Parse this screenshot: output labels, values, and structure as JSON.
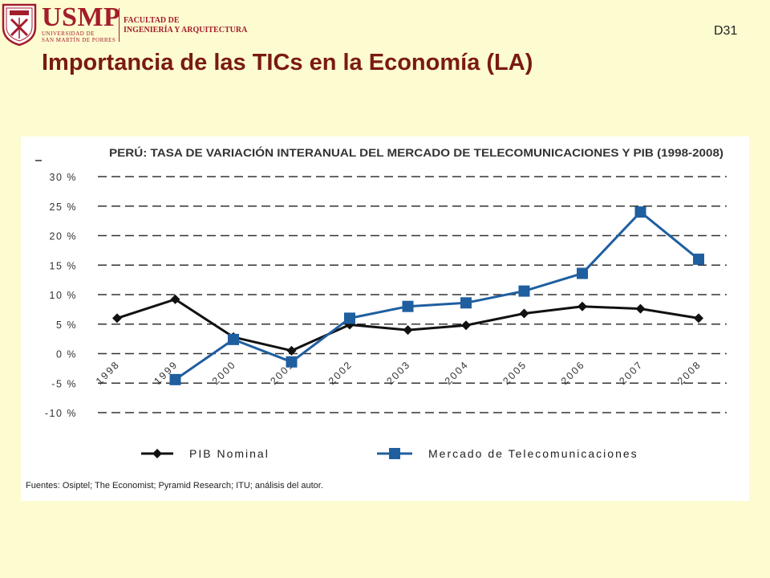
{
  "header": {
    "logo": {
      "seal_text": "VERITAS LIBERABIT VOS",
      "name": "USMP",
      "university_lines": [
        "UNIVERSIDAD DE",
        "SAN MARTÍN DE PORRES"
      ],
      "faculty_lines": [
        "FACULTAD DE",
        "INGENIERÍA Y ARQUITECTURA"
      ]
    },
    "slide_code": "D31"
  },
  "slide_title": "Importancia de las TICs en la Economía (LA)",
  "chart_data": {
    "type": "line",
    "title": "PERÚ: TASA DE VARIACIÓN INTERANUAL DEL MERCADO DE TELECOMUNICACIONES Y PIB (1998-2008)",
    "xlabel": "",
    "ylabel": "",
    "categories": [
      "1998",
      "1999",
      "2000",
      "2001",
      "2002",
      "2003",
      "2004",
      "2005",
      "2006",
      "2007",
      "2008"
    ],
    "y_ticks": [
      "30 %",
      "25 %",
      "20 %",
      "15 %",
      "10 %",
      "5 %",
      "0 %",
      "-5 %",
      "-10 %"
    ],
    "ylim": [
      -10,
      30
    ],
    "grid": true,
    "legend_placement": "bottom",
    "series": [
      {
        "name": "PIB Nominal",
        "color": "#111111",
        "marker": "diamond",
        "values": [
          6.0,
          9.2,
          2.8,
          0.5,
          4.9,
          4.0,
          4.8,
          6.8,
          8.0,
          7.6,
          6.0
        ]
      },
      {
        "name": "Mercado de Telecomunicaciones",
        "color": "#1f5fa0",
        "marker": "square",
        "values": [
          null,
          -4.4,
          2.4,
          -1.4,
          6.0,
          8.0,
          8.6,
          10.6,
          13.6,
          24.0,
          16.0
        ]
      }
    ],
    "source_note": "Fuentes: Osiptel; The Economist; Pyramid Research; ITU; análisis del autor."
  }
}
